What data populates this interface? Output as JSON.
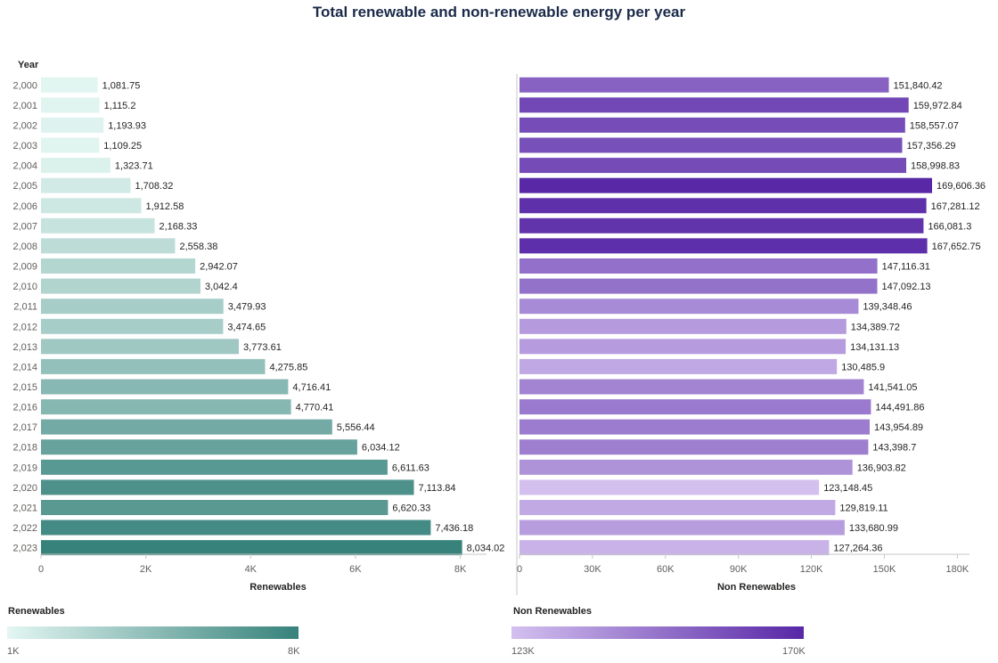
{
  "title": "Total renewable and non-renewable energy per year",
  "chart_data": [
    {
      "type": "bar",
      "orientation": "horizontal",
      "y_axis_title": "Year",
      "xlabel": "Renewables",
      "categories": [
        "2,000",
        "2,001",
        "2,002",
        "2,003",
        "2,004",
        "2,005",
        "2,006",
        "2,007",
        "2,008",
        "2,009",
        "2,010",
        "2,011",
        "2,012",
        "2,013",
        "2,014",
        "2,015",
        "2,016",
        "2,017",
        "2,018",
        "2,019",
        "2,020",
        "2,021",
        "2,022",
        "2,023"
      ],
      "values": [
        1081.75,
        1115.2,
        1193.93,
        1109.25,
        1323.71,
        1708.32,
        1912.58,
        2168.33,
        2558.38,
        2942.07,
        3042.4,
        3479.93,
        3474.65,
        3773.61,
        4275.85,
        4716.41,
        4770.41,
        5556.44,
        6034.12,
        6611.63,
        7113.84,
        6620.33,
        7436.18,
        8034.02
      ],
      "value_labels": [
        "1,081.75",
        "1,115.2",
        "1,193.93",
        "1,109.25",
        "1,323.71",
        "1,708.32",
        "1,912.58",
        "2,168.33",
        "2,558.38",
        "2,942.07",
        "3,042.4",
        "3,479.93",
        "3,474.65",
        "3,773.61",
        "4,275.85",
        "4,716.41",
        "4,770.41",
        "5,556.44",
        "6,034.12",
        "6,611.63",
        "7,113.84",
        "6,620.33",
        "7,436.18",
        "8,034.02"
      ],
      "xlim": [
        0,
        8500
      ],
      "x_ticks": [
        0,
        2000,
        4000,
        6000,
        8000
      ],
      "x_tick_labels": [
        "0",
        "2K",
        "4K",
        "6K",
        "8K"
      ],
      "color_scale": {
        "min": 1000,
        "max": 8000,
        "min_color": "#e3f6f2",
        "max_color": "#37827b"
      }
    },
    {
      "type": "bar",
      "orientation": "horizontal",
      "xlabel": "Non Renewables",
      "categories": [
        "2,000",
        "2,001",
        "2,002",
        "2,003",
        "2,004",
        "2,005",
        "2,006",
        "2,007",
        "2,008",
        "2,009",
        "2,010",
        "2,011",
        "2,012",
        "2,013",
        "2,014",
        "2,015",
        "2,016",
        "2,017",
        "2,018",
        "2,019",
        "2,020",
        "2,021",
        "2,022",
        "2,023"
      ],
      "values": [
        151840.42,
        159972.84,
        158557.07,
        157356.29,
        158998.83,
        169606.36,
        167281.12,
        166081.3,
        167652.75,
        147116.31,
        147092.13,
        139348.46,
        134389.72,
        134131.13,
        130485.9,
        141541.05,
        144491.86,
        143954.89,
        143398.7,
        136903.82,
        123148.45,
        129819.11,
        133680.99,
        127264.36
      ],
      "value_labels": [
        "151,840.42",
        "159,972.84",
        "158,557.07",
        "157,356.29",
        "158,998.83",
        "169,606.36",
        "167,281.12",
        "166,081.3",
        "167,652.75",
        "147,116.31",
        "147,092.13",
        "139,348.46",
        "134,389.72",
        "134,131.13",
        "130,485.9",
        "141,541.05",
        "144,491.86",
        "143,954.89",
        "143,398.7",
        "136,903.82",
        "123,148.45",
        "129,819.11",
        "133,680.99",
        "127,264.36"
      ],
      "xlim": [
        0,
        185000
      ],
      "x_ticks": [
        0,
        30000,
        60000,
        90000,
        120000,
        150000,
        180000
      ],
      "x_tick_labels": [
        "0",
        "30K",
        "60K",
        "90K",
        "120K",
        "150K",
        "180K"
      ],
      "color_scale": {
        "min": 123000,
        "max": 170000,
        "min_color": "#d3c0ef",
        "max_color": "#5727a6"
      }
    }
  ],
  "legends": {
    "renewables": {
      "title": "Renewables",
      "min_label": "1K",
      "max_label": "8K"
    },
    "non_renewables": {
      "title": "Non Renewables",
      "min_label": "123K",
      "max_label": "170K"
    }
  }
}
